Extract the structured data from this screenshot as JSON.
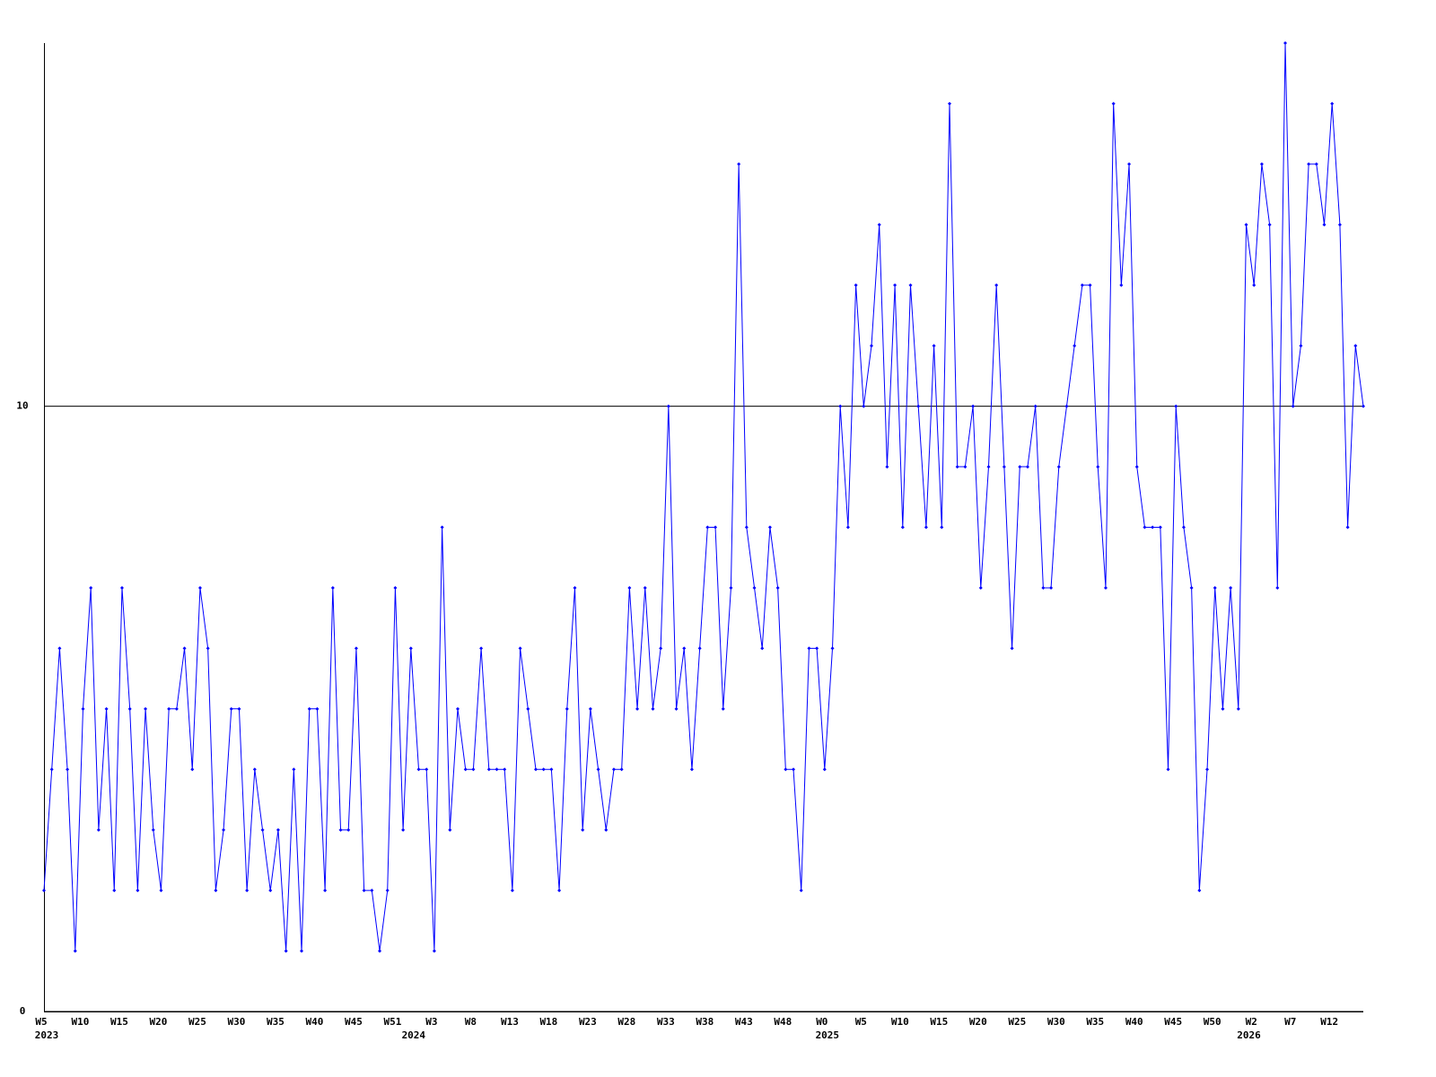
{
  "chart_data": {
    "type": "line",
    "color": "#0000ff",
    "grid_color": "#000000",
    "ylim": [
      0,
      16
    ],
    "yticks": [
      0,
      10
    ],
    "grid": true,
    "values": [
      2,
      4,
      6,
      4,
      1,
      5,
      7,
      3,
      5,
      2,
      7,
      5,
      2,
      5,
      3,
      2,
      5,
      5,
      6,
      4,
      7,
      6,
      2,
      3,
      5,
      5,
      2,
      4,
      3,
      2,
      3,
      1,
      4,
      1,
      5,
      5,
      2,
      7,
      3,
      3,
      6,
      2,
      2,
      1,
      2,
      7,
      3,
      6,
      4,
      4,
      1,
      8,
      3,
      5,
      4,
      4,
      6,
      4,
      4,
      4,
      2,
      6,
      5,
      4,
      4,
      4,
      2,
      5,
      7,
      3,
      5,
      4,
      3,
      4,
      4,
      7,
      5,
      7,
      5,
      6,
      10,
      5,
      6,
      4,
      6,
      8,
      8,
      5,
      7,
      14,
      8,
      7,
      6,
      8,
      7,
      4,
      4,
      2,
      6,
      6,
      4,
      6,
      10,
      8,
      12,
      10,
      11,
      13,
      9,
      12,
      8,
      12,
      10,
      8,
      11,
      8,
      15,
      9,
      9,
      10,
      7,
      9,
      12,
      9,
      6,
      9,
      9,
      10,
      7,
      7,
      9,
      10,
      11,
      12,
      12,
      9,
      7,
      15,
      12,
      14,
      9,
      8,
      8,
      8,
      4,
      10,
      8,
      7,
      2,
      4,
      7,
      5,
      7,
      5,
      13,
      12,
      14,
      13,
      7,
      16,
      10,
      11,
      14,
      14,
      13,
      15,
      13,
      8,
      11,
      10
    ],
    "categories": [
      "W5",
      null,
      null,
      null,
      null,
      "W10",
      null,
      null,
      null,
      null,
      "W15",
      null,
      null,
      null,
      null,
      "W20",
      null,
      null,
      null,
      null,
      "W25",
      null,
      null,
      null,
      null,
      "W30",
      null,
      null,
      null,
      null,
      "W35",
      null,
      null,
      null,
      null,
      "W40",
      null,
      null,
      null,
      null,
      "W45",
      null,
      null,
      null,
      null,
      "W51",
      null,
      null,
      null,
      null,
      "W3",
      null,
      null,
      null,
      null,
      "W8",
      null,
      null,
      null,
      null,
      "W13",
      null,
      null,
      null,
      null,
      "W18",
      null,
      null,
      null,
      null,
      "W23",
      null,
      null,
      null,
      null,
      "W28",
      null,
      null,
      null,
      null,
      "W33",
      null,
      null,
      null,
      null,
      "W38",
      null,
      null,
      null,
      null,
      "W43",
      null,
      null,
      null,
      null,
      "W48",
      null,
      null,
      null,
      null,
      "W0",
      null,
      null,
      null,
      null,
      "W5",
      null,
      null,
      null,
      null,
      "W10",
      null,
      null,
      null,
      null,
      "W15",
      null,
      null,
      null,
      null,
      "W20",
      null,
      null,
      null,
      null,
      "W25",
      null,
      null,
      null,
      null,
      "W30",
      null,
      null,
      null,
      null,
      "W35",
      null,
      null,
      null,
      null,
      "W40",
      null,
      null,
      null,
      null,
      "W45",
      null,
      null,
      null,
      null,
      "W50",
      null,
      null,
      null,
      null,
      "W2",
      null,
      null,
      null,
      null,
      "W7",
      null,
      null,
      null,
      null,
      "W12",
      null,
      null,
      null,
      null
    ],
    "year_labels": [
      "2023",
      null,
      null,
      null,
      null,
      null,
      null,
      null,
      null,
      null,
      null,
      null,
      null,
      null,
      null,
      null,
      null,
      null,
      null,
      null,
      null,
      null,
      null,
      null,
      null,
      null,
      null,
      null,
      null,
      null,
      null,
      null,
      null,
      null,
      null,
      null,
      null,
      null,
      null,
      null,
      null,
      null,
      null,
      null,
      null,
      null,
      null,
      "2024",
      null,
      null,
      null,
      null,
      null,
      null,
      null,
      null,
      null,
      null,
      null,
      null,
      null,
      null,
      null,
      null,
      null,
      null,
      null,
      null,
      null,
      null,
      null,
      null,
      null,
      null,
      null,
      null,
      null,
      null,
      null,
      null,
      null,
      null,
      null,
      null,
      null,
      null,
      null,
      null,
      null,
      null,
      null,
      null,
      null,
      null,
      null,
      null,
      null,
      null,
      null,
      null,
      "2025",
      null,
      null,
      null,
      null,
      null,
      null,
      null,
      null,
      null,
      null,
      null,
      null,
      null,
      null,
      null,
      null,
      null,
      null,
      null,
      null,
      null,
      null,
      null,
      null,
      null,
      null,
      null,
      null,
      null,
      null,
      null,
      null,
      null,
      null,
      null,
      null,
      null,
      null,
      null,
      null,
      null,
      null,
      null,
      null,
      null,
      null,
      null,
      null,
      null,
      null,
      null,
      null,
      null,
      "2026",
      null,
      null,
      null,
      null,
      null,
      null,
      null,
      null,
      null,
      null,
      null,
      null,
      null,
      null,
      null
    ]
  }
}
